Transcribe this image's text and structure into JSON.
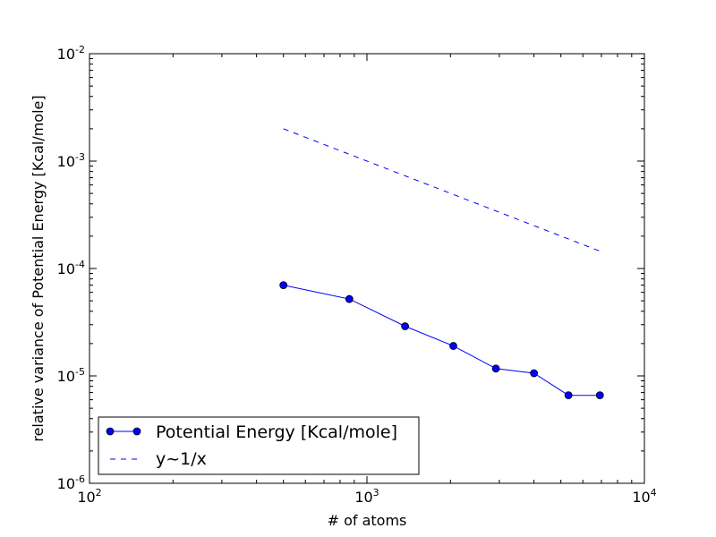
{
  "chart_data": {
    "type": "line",
    "title": "",
    "xlabel": "# of atoms",
    "ylabel": "relative variance of Potential Energy [Kcal/mole]",
    "xscale": "log",
    "yscale": "log",
    "xlim": [
      100,
      10000
    ],
    "ylim": [
      1e-06,
      0.01
    ],
    "x_ticks": [
      {
        "value": 100,
        "base": "10",
        "exp": "2"
      },
      {
        "value": 1000,
        "base": "10",
        "exp": "3"
      },
      {
        "value": 10000,
        "base": "10",
        "exp": "4"
      }
    ],
    "y_ticks": [
      {
        "value": 1e-06,
        "base": "10",
        "exp": "-6"
      },
      {
        "value": 1e-05,
        "base": "10",
        "exp": "-5"
      },
      {
        "value": 0.0001,
        "base": "10",
        "exp": "-4"
      },
      {
        "value": 0.001,
        "base": "10",
        "exp": "-3"
      },
      {
        "value": 0.01,
        "base": "10",
        "exp": "-2"
      }
    ],
    "grid": false,
    "legend_position": "lower-left",
    "series": [
      {
        "name": "Potential Energy [Kcal/mole]",
        "style": "line-with-markers",
        "color": "#0000ff",
        "x": [
          500,
          864,
          1372,
          2048,
          2916,
          4000,
          5324,
          6912
        ],
        "y": [
          7e-05,
          5.2e-05,
          2.9e-05,
          1.9e-05,
          1.17e-05,
          1.06e-05,
          6.6e-06,
          6.6e-06
        ]
      },
      {
        "name": "y~1/x",
        "style": "dashed",
        "color": "#0000ff",
        "x": [
          500,
          6912
        ],
        "y": [
          0.002,
          0.000145
        ]
      }
    ]
  }
}
